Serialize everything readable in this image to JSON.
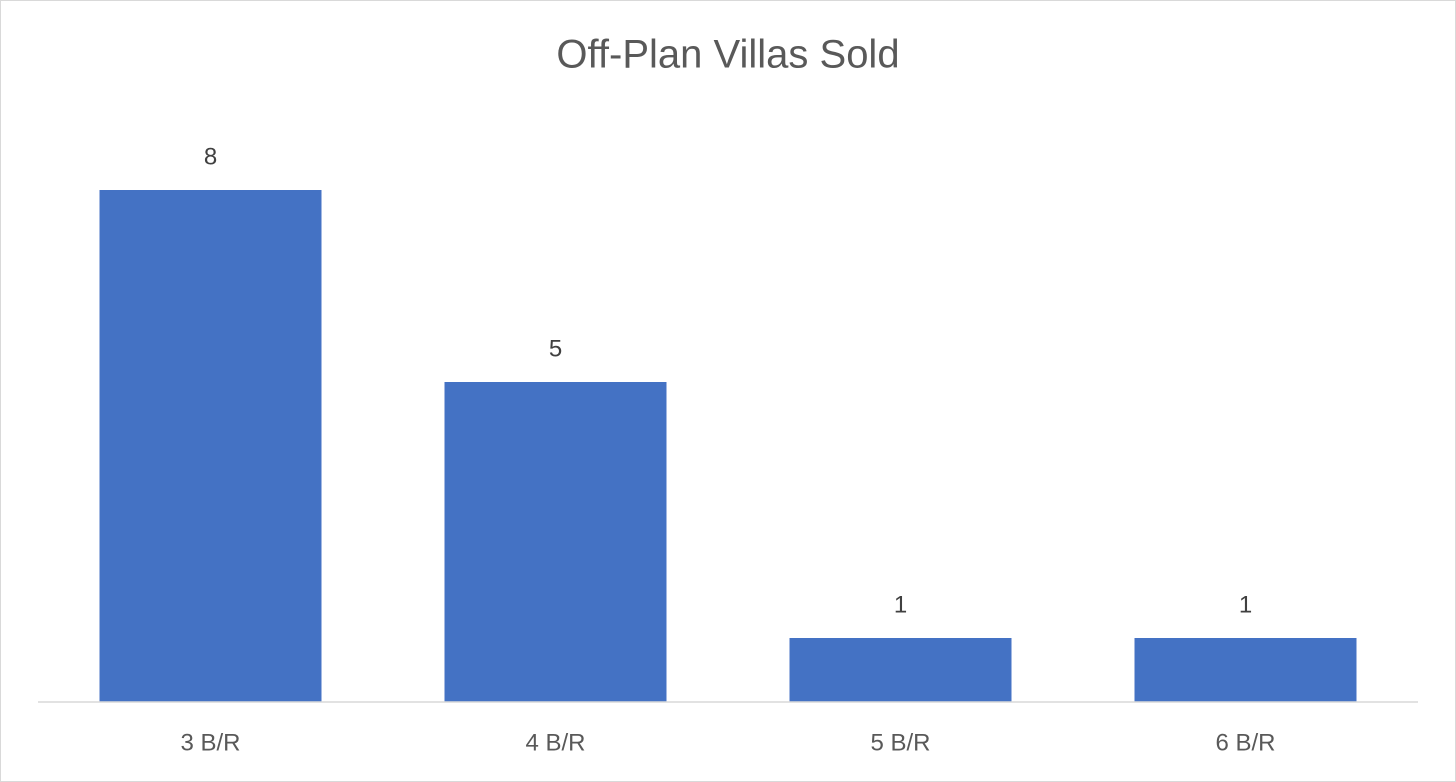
{
  "chart_data": {
    "type": "bar",
    "title": "Off-Plan Villas Sold",
    "categories": [
      "3 B/R",
      "4 B/R",
      "5 B/R",
      "6 B/R"
    ],
    "values": [
      8,
      5,
      1,
      1
    ],
    "color": "#4472c4",
    "ylim": [
      0,
      9
    ],
    "grid": false
  }
}
